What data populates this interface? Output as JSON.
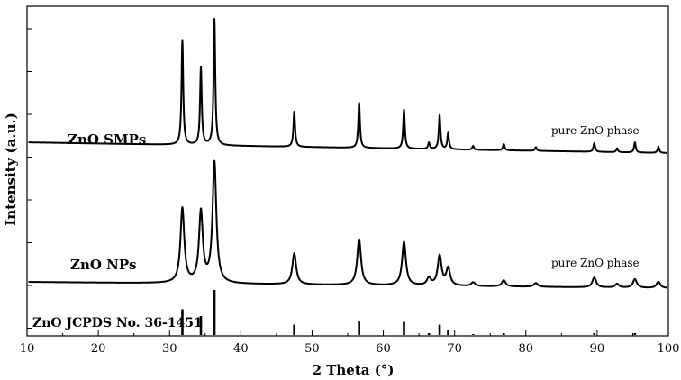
{
  "chart_data": {
    "type": "line",
    "xlabel": "2 Theta (°)",
    "ylabel": "Intensity (a.u.)",
    "xlim": [
      10,
      100
    ],
    "x_ticks": [
      10,
      20,
      30,
      40,
      50,
      60,
      70,
      80,
      90,
      100
    ],
    "y_tick_labels": "none",
    "grid": false,
    "legend": "none",
    "series": [
      {
        "name": "ZnO SMPs",
        "annotation": "pure ZnO phase",
        "baseline_start": 0.085,
        "baseline_end": 0.0,
        "peak_width": 0.14,
        "peaks": [
          {
            "x": 31.8,
            "h": 0.83
          },
          {
            "x": 34.4,
            "h": 0.62
          },
          {
            "x": 36.3,
            "h": 1.0
          },
          {
            "x": 47.5,
            "h": 0.28
          },
          {
            "x": 56.6,
            "h": 0.36
          },
          {
            "x": 62.9,
            "h": 0.31
          },
          {
            "x": 66.4,
            "h": 0.05
          },
          {
            "x": 67.9,
            "h": 0.27
          },
          {
            "x": 69.1,
            "h": 0.13
          },
          {
            "x": 72.6,
            "h": 0.03
          },
          {
            "x": 76.9,
            "h": 0.05
          },
          {
            "x": 81.4,
            "h": 0.03
          },
          {
            "x": 89.6,
            "h": 0.07
          },
          {
            "x": 92.8,
            "h": 0.03
          },
          {
            "x": 95.3,
            "h": 0.08
          },
          {
            "x": 98.6,
            "h": 0.05
          }
        ]
      },
      {
        "name": "ZnO NPs",
        "annotation": "pure ZnO phase",
        "baseline_start": 0.05,
        "baseline_end": 0.0,
        "peak_width": 0.32,
        "peaks": [
          {
            "x": 31.8,
            "h": 0.6
          },
          {
            "x": 34.4,
            "h": 0.57
          },
          {
            "x": 36.3,
            "h": 0.97
          },
          {
            "x": 47.5,
            "h": 0.25
          },
          {
            "x": 56.6,
            "h": 0.37
          },
          {
            "x": 62.9,
            "h": 0.35
          },
          {
            "x": 66.4,
            "h": 0.06
          },
          {
            "x": 67.9,
            "h": 0.24
          },
          {
            "x": 69.1,
            "h": 0.14
          },
          {
            "x": 72.6,
            "h": 0.03
          },
          {
            "x": 76.9,
            "h": 0.05
          },
          {
            "x": 81.4,
            "h": 0.03
          },
          {
            "x": 89.6,
            "h": 0.08
          },
          {
            "x": 92.8,
            "h": 0.03
          },
          {
            "x": 95.3,
            "h": 0.07
          },
          {
            "x": 98.6,
            "h": 0.05
          }
        ]
      },
      {
        "name": "ZnO JCPDS No. 36-1451",
        "type": "stick",
        "peaks": [
          {
            "x": 31.8,
            "h": 0.57
          },
          {
            "x": 34.4,
            "h": 0.42
          },
          {
            "x": 36.3,
            "h": 1.0
          },
          {
            "x": 47.5,
            "h": 0.23
          },
          {
            "x": 56.6,
            "h": 0.32
          },
          {
            "x": 62.9,
            "h": 0.29
          },
          {
            "x": 66.4,
            "h": 0.04
          },
          {
            "x": 67.9,
            "h": 0.23
          },
          {
            "x": 69.1,
            "h": 0.11
          },
          {
            "x": 72.6,
            "h": 0.02
          },
          {
            "x": 76.9,
            "h": 0.04
          },
          {
            "x": 89.6,
            "h": 0.04
          },
          {
            "x": 95.3,
            "h": 0.04
          }
        ]
      }
    ]
  }
}
